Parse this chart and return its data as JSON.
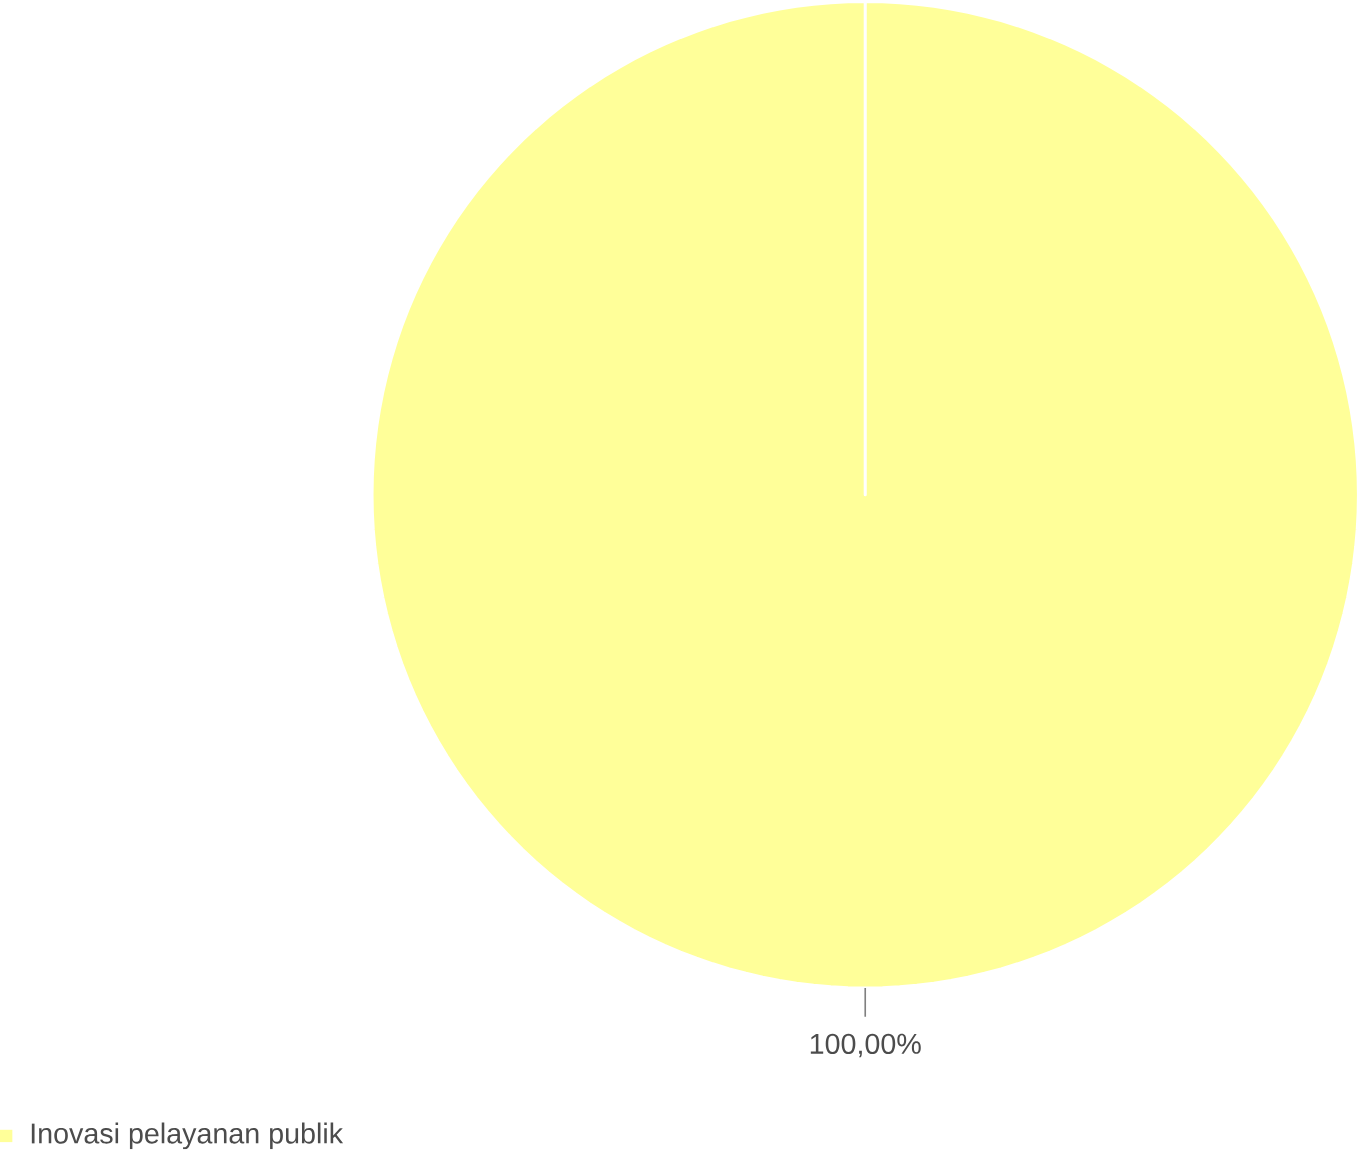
{
  "chart_data": {
    "type": "pie",
    "categories": [
      "Inovasi pelayanan publik"
    ],
    "values": [
      100
    ],
    "colors": [
      "#ffff99"
    ],
    "value_labels": [
      "100,00%"
    ],
    "legend": "bottom left"
  }
}
